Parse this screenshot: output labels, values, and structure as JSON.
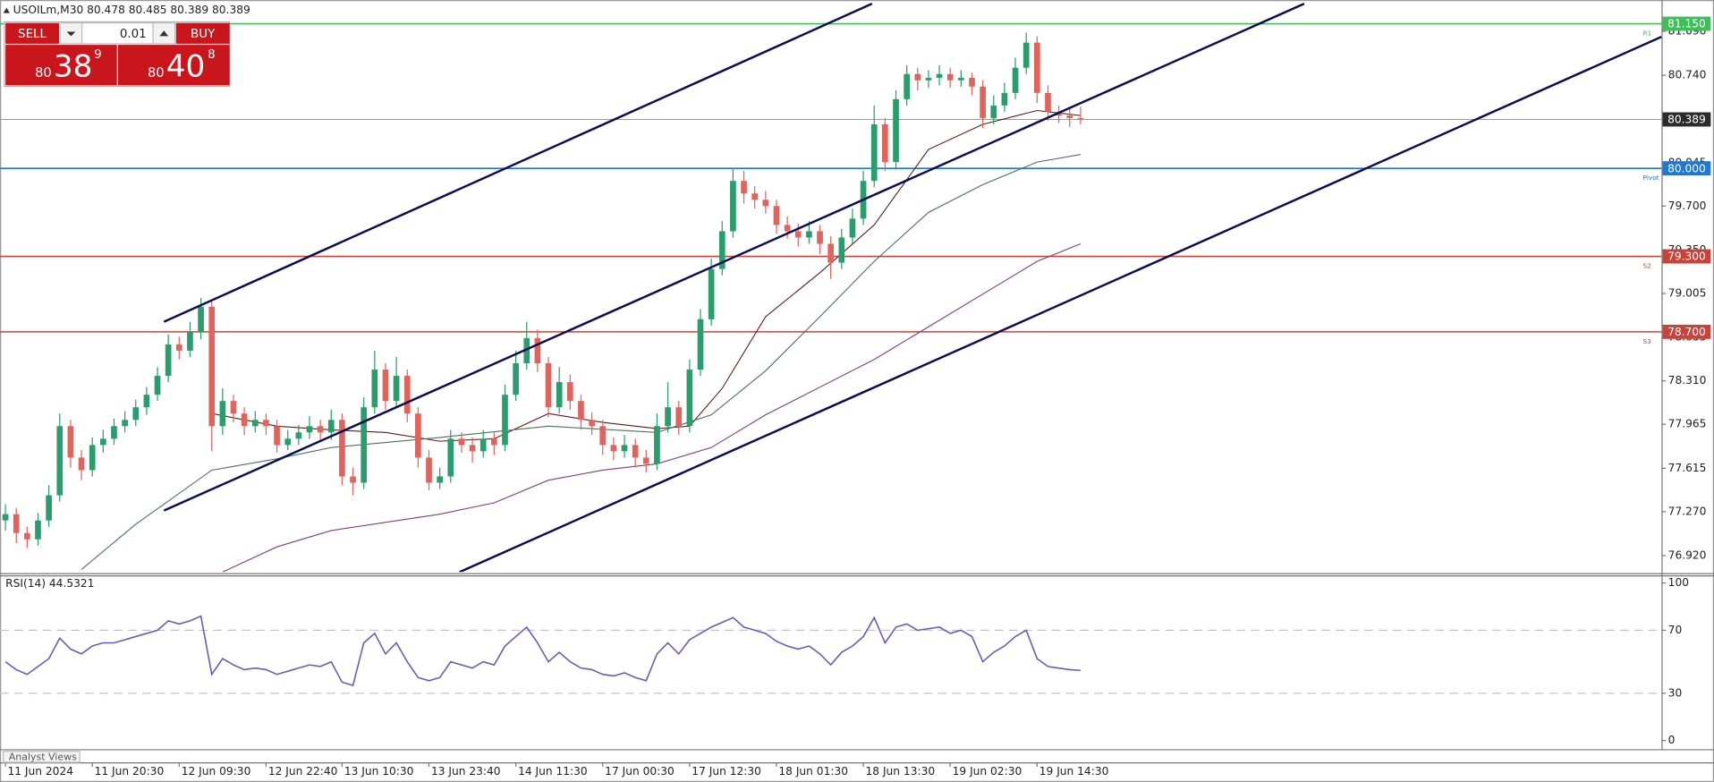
{
  "trade_panel": {
    "sell": "SELL",
    "buy": "BUY",
    "lot": "0.01",
    "bid": {
      "big": "80",
      "pips": "38",
      "point": "9"
    },
    "ask": {
      "big": "80",
      "pips": "40",
      "point": "8"
    }
  },
  "tabs": [
    "Analyst Views"
  ],
  "chart_data": [
    {
      "type": "candlestick",
      "title": "USOILm,M30  80.478 80.485 80.389 80.389",
      "up_color": "#2a9d6c",
      "down_color": "#e0645c",
      "xlim": [
        -0.5,
        152.5
      ],
      "xticks": [
        {
          "value": 0,
          "label": "11 Jun 2024"
        },
        {
          "value": 8,
          "label": "11 Jun 20:30"
        },
        {
          "value": 16,
          "label": "12 Jun 09:30"
        },
        {
          "value": 24,
          "label": "12 Jun 22:40"
        },
        {
          "value": 31,
          "label": "13 Jun 10:30"
        },
        {
          "value": 39,
          "label": "13 Jun 23:40"
        },
        {
          "value": 47,
          "label": "14 Jun 11:30"
        },
        {
          "value": 55,
          "label": "17 Jun 00:30"
        },
        {
          "value": 63,
          "label": "17 Jun 12:30"
        },
        {
          "value": 71,
          "label": "18 Jun 01:30"
        },
        {
          "value": 79,
          "label": "18 Jun 13:30"
        },
        {
          "value": 87,
          "label": "19 Jun 02:30"
        },
        {
          "value": 95,
          "label": "19 Jun 14:30"
        }
      ],
      "ylim": [
        76.79,
        81.33
      ],
      "yticks": [
        {
          "value": 76.92,
          "label": "76.920"
        },
        {
          "value": 77.27,
          "label": "77.270"
        },
        {
          "value": 77.615,
          "label": "77.615"
        },
        {
          "value": 77.965,
          "label": "77.965"
        },
        {
          "value": 78.31,
          "label": "78.310"
        },
        {
          "value": 78.655,
          "label": "78.655"
        },
        {
          "value": 79.005,
          "label": "79.005"
        },
        {
          "value": 79.35,
          "label": "79.350"
        },
        {
          "value": 79.7,
          "label": "79.700"
        },
        {
          "value": 80.045,
          "label": "80.045"
        },
        {
          "value": 80.74,
          "label": "80.740"
        },
        {
          "value": 81.09,
          "label": "81.090"
        }
      ],
      "ohlc": [
        [
          77.2,
          77.33,
          77.12,
          77.25
        ],
        [
          77.25,
          77.3,
          77.02,
          77.1
        ],
        [
          77.1,
          77.15,
          76.98,
          77.05
        ],
        [
          77.05,
          77.26,
          77.0,
          77.2
        ],
        [
          77.2,
          77.48,
          77.15,
          77.4
        ],
        [
          77.4,
          78.05,
          77.35,
          77.95
        ],
        [
          77.95,
          78.0,
          77.62,
          77.7
        ],
        [
          77.7,
          77.76,
          77.52,
          77.6
        ],
        [
          77.6,
          77.86,
          77.55,
          77.8
        ],
        [
          77.8,
          77.92,
          77.74,
          77.85
        ],
        [
          77.85,
          78.01,
          77.8,
          77.95
        ],
        [
          77.95,
          78.07,
          77.9,
          78.0
        ],
        [
          78.0,
          78.16,
          77.95,
          78.1
        ],
        [
          78.1,
          78.26,
          78.04,
          78.2
        ],
        [
          78.2,
          78.42,
          78.15,
          78.35
        ],
        [
          78.35,
          78.68,
          78.3,
          78.6
        ],
        [
          78.6,
          78.66,
          78.48,
          78.55
        ],
        [
          78.55,
          78.78,
          78.5,
          78.7
        ],
        [
          78.7,
          78.97,
          78.64,
          78.9
        ],
        [
          78.9,
          78.95,
          77.75,
          77.95
        ],
        [
          77.95,
          78.25,
          77.88,
          78.15
        ],
        [
          78.15,
          78.2,
          77.98,
          78.05
        ],
        [
          78.05,
          78.1,
          77.88,
          77.95
        ],
        [
          77.95,
          78.07,
          77.9,
          78.0
        ],
        [
          78.0,
          78.05,
          77.88,
          77.95
        ],
        [
          77.95,
          78.0,
          77.74,
          77.8
        ],
        [
          77.8,
          77.92,
          77.76,
          77.85
        ],
        [
          77.85,
          77.96,
          77.8,
          77.9
        ],
        [
          77.9,
          78.03,
          77.85,
          77.95
        ],
        [
          77.95,
          78.0,
          77.84,
          77.9
        ],
        [
          77.9,
          78.08,
          77.84,
          78.0
        ],
        [
          78.0,
          78.05,
          77.48,
          77.55
        ],
        [
          77.55,
          77.62,
          77.4,
          77.5
        ],
        [
          77.5,
          78.18,
          77.45,
          78.1
        ],
        [
          78.1,
          78.55,
          78.05,
          78.4
        ],
        [
          78.4,
          78.45,
          78.08,
          78.15
        ],
        [
          78.15,
          78.5,
          78.1,
          78.35
        ],
        [
          78.35,
          78.4,
          77.98,
          78.05
        ],
        [
          78.05,
          78.1,
          77.62,
          77.7
        ],
        [
          77.7,
          77.76,
          77.44,
          77.5
        ],
        [
          77.5,
          77.62,
          77.45,
          77.55
        ],
        [
          77.55,
          77.92,
          77.5,
          77.85
        ],
        [
          77.85,
          77.9,
          77.74,
          77.8
        ],
        [
          77.8,
          77.86,
          77.66,
          77.75
        ],
        [
          77.75,
          77.92,
          77.7,
          77.85
        ],
        [
          77.85,
          77.9,
          77.72,
          77.8
        ],
        [
          77.8,
          78.28,
          77.75,
          78.2
        ],
        [
          78.2,
          78.55,
          78.15,
          78.45
        ],
        [
          78.45,
          78.78,
          78.4,
          78.65
        ],
        [
          78.65,
          78.72,
          78.38,
          78.45
        ],
        [
          78.45,
          78.5,
          78.02,
          78.1
        ],
        [
          78.1,
          78.42,
          78.05,
          78.3
        ],
        [
          78.3,
          78.36,
          78.08,
          78.15
        ],
        [
          78.15,
          78.2,
          77.92,
          78.0
        ],
        [
          78.0,
          78.06,
          77.88,
          77.95
        ],
        [
          77.95,
          78.0,
          77.72,
          77.8
        ],
        [
          77.8,
          77.86,
          77.68,
          77.75
        ],
        [
          77.75,
          77.88,
          77.7,
          77.8
        ],
        [
          77.8,
          77.85,
          77.62,
          77.7
        ],
        [
          77.7,
          77.76,
          77.58,
          77.65
        ],
        [
          77.65,
          78.05,
          77.6,
          77.95
        ],
        [
          77.95,
          78.3,
          77.9,
          78.1
        ],
        [
          78.1,
          78.15,
          77.88,
          77.95
        ],
        [
          77.95,
          78.48,
          77.9,
          78.4
        ],
        [
          78.4,
          78.88,
          78.35,
          78.8
        ],
        [
          78.8,
          79.28,
          78.75,
          79.2
        ],
        [
          79.2,
          79.58,
          79.15,
          79.5
        ],
        [
          79.5,
          80.0,
          79.45,
          79.9
        ],
        [
          79.9,
          79.98,
          79.72,
          79.8
        ],
        [
          79.8,
          79.86,
          79.68,
          79.75
        ],
        [
          79.75,
          79.82,
          79.64,
          79.7
        ],
        [
          79.7,
          79.75,
          79.48,
          79.55
        ],
        [
          79.55,
          79.62,
          79.44,
          79.5
        ],
        [
          79.5,
          79.56,
          79.38,
          79.45
        ],
        [
          79.45,
          79.58,
          79.4,
          79.5
        ],
        [
          79.5,
          79.55,
          79.32,
          79.4
        ],
        [
          79.4,
          79.46,
          79.12,
          79.25
        ],
        [
          79.25,
          79.52,
          79.2,
          79.45
        ],
        [
          79.45,
          79.68,
          79.4,
          79.6
        ],
        [
          79.6,
          79.98,
          79.55,
          79.9
        ],
        [
          79.9,
          80.5,
          79.85,
          80.35
        ],
        [
          80.35,
          80.4,
          79.98,
          80.05
        ],
        [
          80.05,
          80.62,
          80.0,
          80.55
        ],
        [
          80.55,
          80.82,
          80.5,
          80.75
        ],
        [
          80.75,
          80.8,
          80.62,
          80.7
        ],
        [
          80.7,
          80.78,
          80.64,
          80.72
        ],
        [
          80.72,
          80.82,
          80.66,
          80.75
        ],
        [
          80.75,
          80.8,
          80.64,
          80.7
        ],
        [
          80.7,
          80.78,
          80.65,
          80.72
        ],
        [
          80.72,
          80.76,
          80.58,
          80.65
        ],
        [
          80.65,
          80.7,
          80.32,
          80.4
        ],
        [
          80.4,
          80.58,
          80.35,
          80.5
        ],
        [
          80.5,
          80.68,
          80.45,
          80.6
        ],
        [
          80.6,
          80.88,
          80.55,
          80.8
        ],
        [
          80.8,
          81.08,
          80.75,
          81.0
        ],
        [
          81.0,
          81.05,
          80.52,
          80.6
        ],
        [
          80.6,
          80.66,
          80.38,
          80.45
        ],
        [
          80.45,
          80.5,
          80.36,
          80.42
        ],
        [
          80.42,
          80.48,
          80.33,
          80.4
        ],
        [
          80.4,
          80.49,
          80.35,
          80.39
        ]
      ],
      "moving_averages": [
        {
          "color": "#5a1e14",
          "x": [
            19,
            25,
            30,
            35,
            40,
            45,
            50,
            55,
            60,
            63,
            66,
            70,
            75,
            80,
            85,
            90,
            95,
            99
          ],
          "values": [
            78.05,
            77.95,
            77.92,
            77.9,
            77.83,
            77.85,
            78.05,
            77.98,
            77.93,
            77.95,
            78.25,
            78.82,
            79.17,
            79.55,
            80.15,
            80.35,
            80.46,
            80.42
          ]
        },
        {
          "color": "#4f6d63",
          "x": [
            7,
            12,
            19,
            25,
            30,
            40,
            50,
            60,
            65,
            70,
            75,
            80,
            85,
            90,
            95,
            99
          ],
          "values": [
            76.81,
            77.17,
            77.6,
            77.69,
            77.78,
            77.86,
            77.95,
            77.9,
            78.04,
            78.39,
            78.82,
            79.26,
            79.65,
            79.87,
            80.05,
            80.11
          ]
        },
        {
          "color": "#7b3f7b",
          "x": [
            20,
            25,
            30,
            40,
            45,
            50,
            55,
            60,
            65,
            70,
            75,
            80,
            85,
            90,
            95,
            99
          ],
          "values": [
            76.79,
            76.99,
            77.12,
            77.25,
            77.34,
            77.52,
            77.6,
            77.65,
            77.78,
            78.04,
            78.26,
            78.48,
            78.74,
            79.0,
            79.26,
            79.4
          ]
        }
      ],
      "trendline_color": "#0b0b52",
      "trendlines": [
        {
          "x": [
            14.6,
            79.8
          ],
          "values": [
            78.78,
            81.309
          ]
        },
        {
          "x": [
            14.6,
            119.6
          ],
          "values": [
            77.279,
            81.309
          ]
        },
        {
          "x": [
            41.8,
            152.5
          ],
          "values": [
            76.789,
            81.046
          ]
        }
      ],
      "levels": [
        {
          "value": 81.15,
          "label": "81.150",
          "name": "R1",
          "color": "#3fbf5a"
        },
        {
          "value": 80.389,
          "label": "80.389",
          "color": "#9a9a9a",
          "box_color": "#2b2b2b"
        },
        {
          "value": 80.0,
          "label": "80.000",
          "name": "Pivot",
          "color": "#1f78d1"
        },
        {
          "value": 79.3,
          "label": "79.300",
          "name": "S2",
          "color": "#c8433a"
        },
        {
          "value": 78.7,
          "label": "78.700",
          "name": "S3",
          "color": "#c8433a"
        }
      ]
    },
    {
      "type": "line",
      "title": "RSI(14) 44.5321",
      "color": "#6b5bb5",
      "ylim": [
        -5.5,
        104.2
      ],
      "yticks": [
        0,
        30,
        70,
        100
      ],
      "levels": [
        30,
        70
      ],
      "values": [
        50,
        45,
        42,
        47,
        52,
        65,
        58,
        55,
        60,
        62,
        62,
        64,
        66,
        68,
        70,
        76,
        74,
        76,
        79,
        42,
        52,
        48,
        45,
        46,
        45,
        42,
        44,
        46,
        48,
        47,
        50,
        37,
        35,
        62,
        68,
        55,
        62,
        50,
        40,
        38,
        40,
        50,
        48,
        46,
        50,
        48,
        60,
        66,
        72,
        62,
        50,
        56,
        50,
        46,
        45,
        42,
        41,
        43,
        40,
        38,
        55,
        62,
        55,
        64,
        68,
        72,
        75,
        78,
        72,
        70,
        68,
        63,
        60,
        58,
        60,
        55,
        48,
        56,
        60,
        66,
        78,
        62,
        72,
        74,
        70,
        71,
        72,
        68,
        70,
        66,
        50,
        56,
        60,
        66,
        70,
        52,
        47,
        46,
        45,
        44.5321
      ]
    }
  ]
}
